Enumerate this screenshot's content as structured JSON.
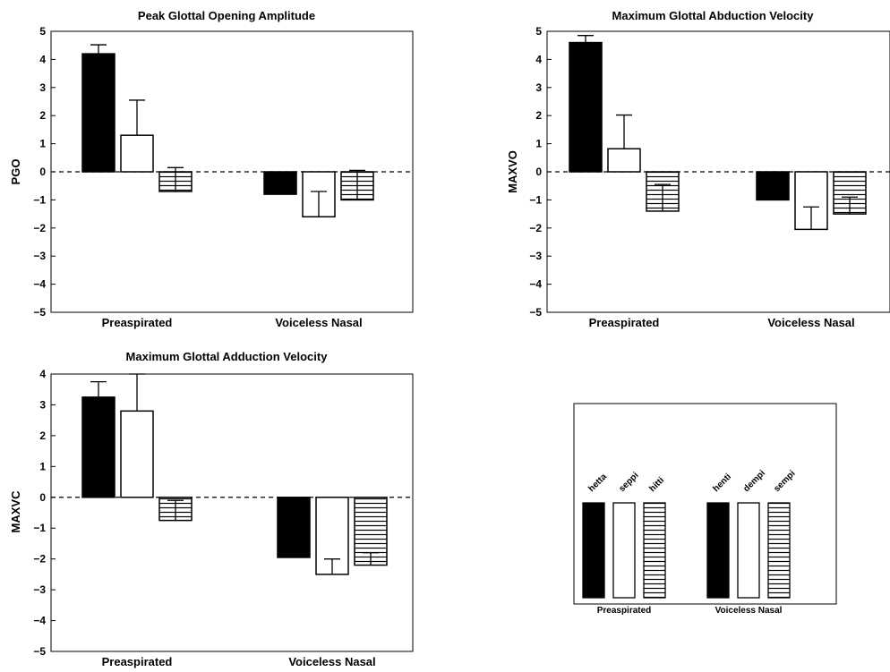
{
  "chart_data": [
    {
      "type": "bar",
      "title": "Peak Glottal Opening Amplitude",
      "ylabel": "PGO",
      "ylim": [
        -5,
        5
      ],
      "yticks": [
        "−5",
        "−4",
        "−3",
        "−2",
        "−1",
        "0",
        "1",
        "2",
        "3",
        "4",
        "5"
      ],
      "categories": [
        "Preaspirated",
        "Voiceless Nasal"
      ],
      "reference_line": 0,
      "series": [
        {
          "fill": "solid",
          "values": [
            4.2,
            -0.8
          ],
          "errors": [
            0.32,
            0.65
          ]
        },
        {
          "fill": "open",
          "values": [
            1.3,
            -1.6
          ],
          "errors": [
            1.25,
            0.9
          ]
        },
        {
          "fill": "hatched",
          "values": [
            -0.7,
            -1.0
          ],
          "errors": [
            0.85,
            1.05
          ]
        }
      ]
    },
    {
      "type": "bar",
      "title": "Maximum Glottal Abduction Velocity",
      "ylabel": "MAXVO",
      "ylim": [
        -5,
        5
      ],
      "yticks": [
        "−5",
        "−4",
        "−3",
        "−2",
        "−1",
        "0",
        "1",
        "2",
        "3",
        "4",
        "5"
      ],
      "categories": [
        "Preaspirated",
        "Voiceless Nasal"
      ],
      "reference_line": 0,
      "series": [
        {
          "fill": "solid",
          "values": [
            4.6,
            -1.0
          ],
          "errors": [
            0.25,
            0.6
          ]
        },
        {
          "fill": "open",
          "values": [
            0.82,
            -2.05
          ],
          "errors": [
            1.2,
            0.8
          ]
        },
        {
          "fill": "hatched",
          "values": [
            -1.4,
            -1.5
          ],
          "errors": [
            0.95,
            0.6
          ]
        }
      ]
    },
    {
      "type": "bar",
      "title": "Maximum Glottal Adduction Velocity",
      "ylabel": "MAXVC",
      "ylim": [
        -5,
        4
      ],
      "yticks": [
        "−5",
        "−4",
        "−3",
        "−2",
        "−1",
        "0",
        "1",
        "2",
        "3",
        "4"
      ],
      "categories": [
        "Preaspirated",
        "Voiceless Nasal"
      ],
      "reference_line": 0,
      "series": [
        {
          "fill": "solid",
          "values": [
            3.25,
            -1.95
          ],
          "errors": [
            0.5,
            0.3
          ]
        },
        {
          "fill": "open",
          "values": [
            2.8,
            -2.5
          ],
          "errors": [
            1.2,
            0.5
          ]
        },
        {
          "fill": "hatched",
          "values": [
            -0.75,
            -2.2
          ],
          "errors": [
            0.65,
            0.4
          ]
        }
      ]
    }
  ],
  "legend": {
    "groups": [
      {
        "label": "Preaspirated",
        "words": [
          "hetta",
          "seppi",
          "hitti"
        ]
      },
      {
        "label": "Voiceless Nasal",
        "words": [
          "henti",
          "dempi",
          "sempi"
        ]
      }
    ],
    "fills": [
      "solid",
      "open",
      "hatched"
    ]
  }
}
